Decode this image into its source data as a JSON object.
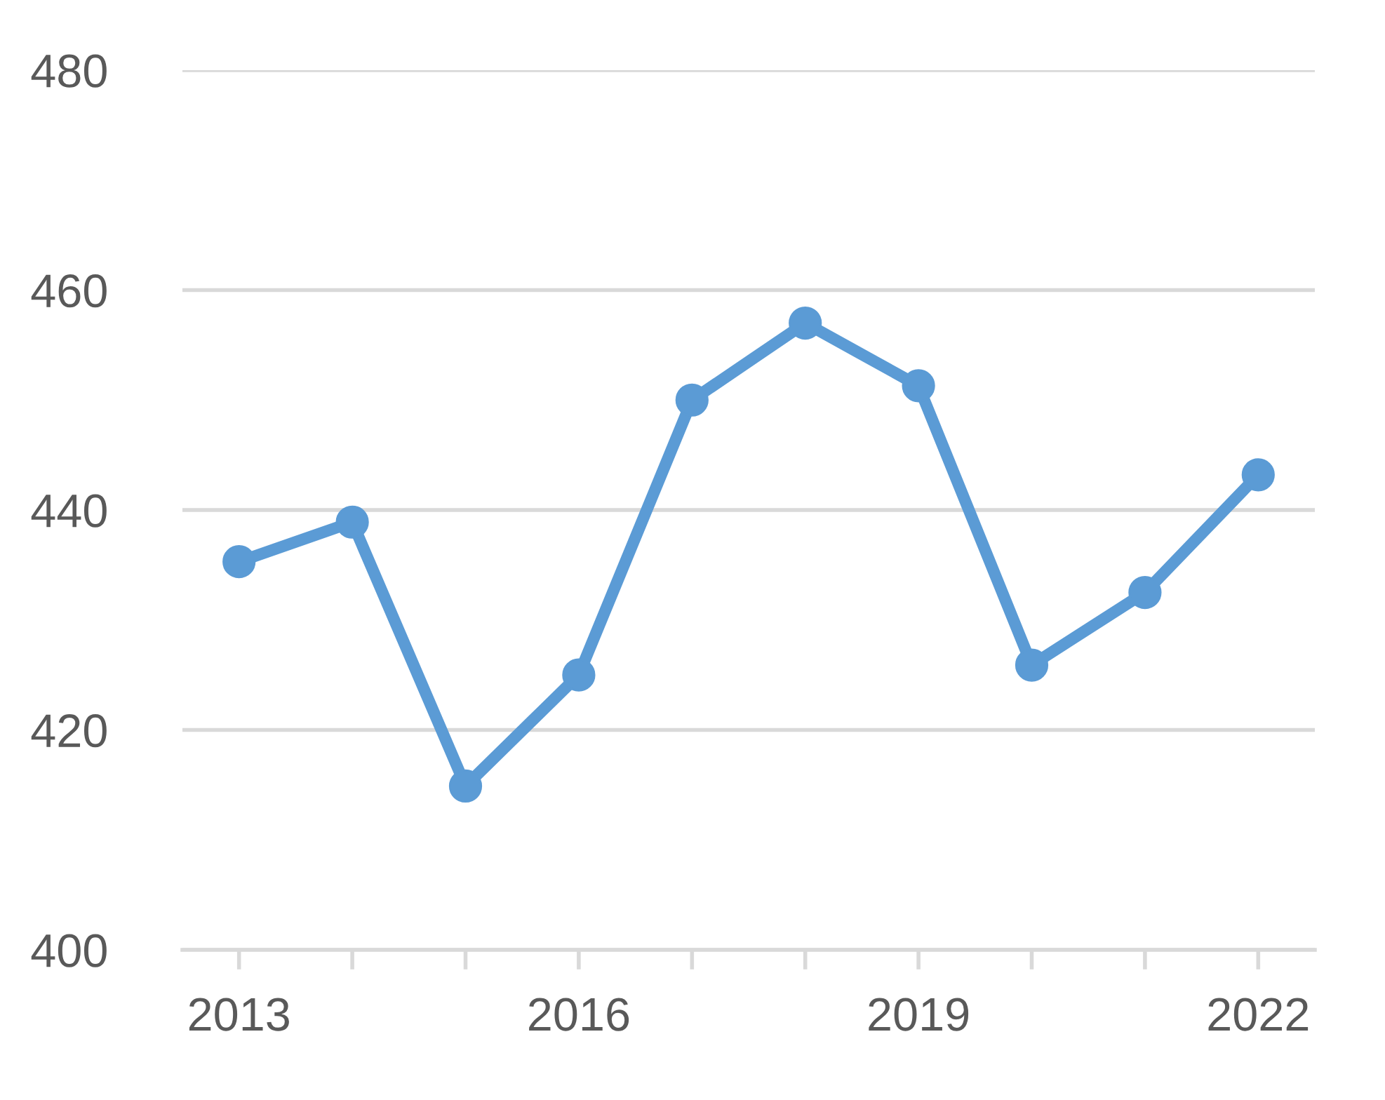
{
  "chart_data": {
    "type": "line",
    "categories": [
      "2013",
      null,
      null,
      "2016",
      null,
      null,
      "2019",
      null,
      null,
      "2022"
    ],
    "series": [
      {
        "color": "#5b9bd5",
        "values": [
          435.3,
          438.9,
          414.9,
          425.0,
          450.0,
          457.0,
          451.3,
          425.9,
          432.5,
          443.2
        ]
      }
    ],
    "ylim": [
      400,
      480
    ],
    "yticks": [
      400,
      420,
      440,
      460,
      480
    ],
    "grid": "y",
    "marker": "circle",
    "line_style": "solid",
    "legend": false
  }
}
